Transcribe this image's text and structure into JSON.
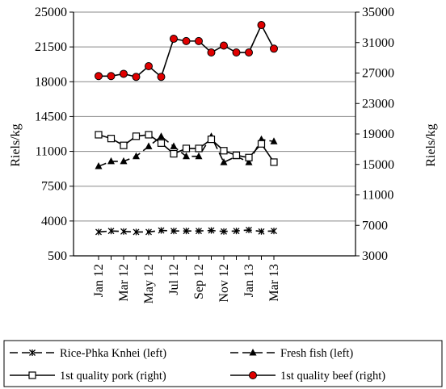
{
  "chart_data": {
    "type": "line",
    "title": "",
    "categories": [
      "Jan 12",
      "Feb 12",
      "Mar 12",
      "Apr 12",
      "May 12",
      "Jun 12",
      "Jul 12",
      "Aug 12",
      "Sep 12",
      "Oct 12",
      "Nov 12",
      "Dec 12",
      "Jan 13",
      "Feb 13",
      "Mar 13"
    ],
    "x_tick_labels": [
      "Jan 12",
      "Mar 12",
      "May 12",
      "Jul 12",
      "Sep 12",
      "Nov 12",
      "Jan 13",
      "Mar 13"
    ],
    "ylabel_left": "Riels/kg",
    "ylabel_right": "Riels/kg",
    "y_left": {
      "min": 500,
      "max": 25000,
      "ticks": [
        "500",
        "4000",
        "7500",
        "11000",
        "14500",
        "18000",
        "21500",
        "25000"
      ]
    },
    "y_right": {
      "min": 3000,
      "max": 35000,
      "ticks": [
        "3000",
        "7000",
        "11000",
        "15000",
        "19000",
        "23000",
        "27000",
        "31000",
        "35000"
      ]
    },
    "grid": "horizontal",
    "legend_position": "bottom",
    "series": [
      {
        "name": "Rice-Phka Knhei (left)",
        "axis": "left",
        "marker": "x",
        "dash": "dashed",
        "color": "#000000",
        "values": [
          2900,
          3000,
          2950,
          2900,
          2900,
          3050,
          3000,
          3000,
          3000,
          3050,
          2950,
          3000,
          3100,
          2950,
          3000
        ]
      },
      {
        "name": "Fresh fish (left)",
        "axis": "left",
        "marker": "triangle",
        "dash": "dashed",
        "color": "#000000",
        "values": [
          9500,
          10000,
          10000,
          10500,
          11500,
          12500,
          11500,
          10500,
          10500,
          12500,
          9900,
          10500,
          9900,
          12200,
          12000
        ]
      },
      {
        "name": "1st quality pork (right)",
        "axis": "right",
        "marker": "square",
        "dash": "solid",
        "color": "#000000",
        "values": [
          18900,
          18400,
          17500,
          18700,
          18900,
          17800,
          16400,
          17100,
          17100,
          18300,
          16800,
          16200,
          15900,
          17700,
          15300
        ]
      },
      {
        "name": "1st quality beef (right)",
        "axis": "right",
        "marker": "circle",
        "dash": "solid",
        "color": "#000000",
        "marker_fill": "#e00000",
        "values": [
          26600,
          26600,
          26900,
          26500,
          27900,
          26500,
          31500,
          31200,
          31200,
          29700,
          30600,
          29700,
          29700,
          33300,
          30200
        ]
      }
    ]
  }
}
